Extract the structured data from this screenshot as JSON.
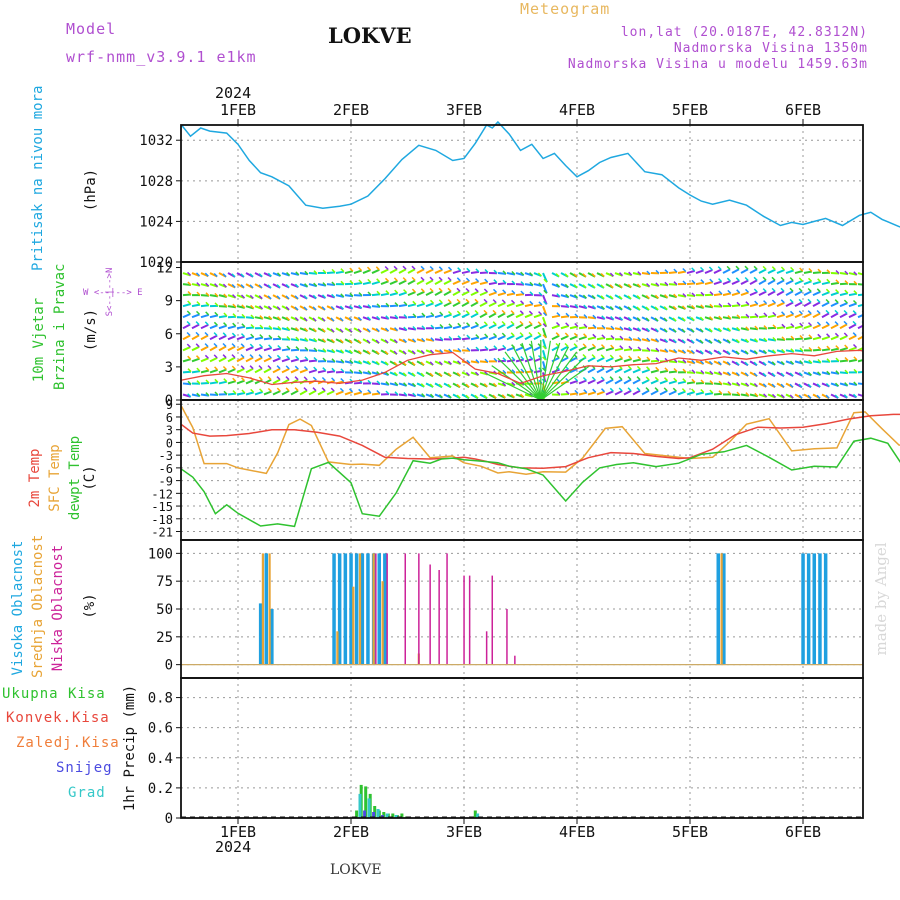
{
  "header": {
    "model_label": "Model",
    "model_name": "wrf-nmm_v3.9.1 e1km",
    "station": "LOKVE",
    "title": "Meteogram",
    "coords": "lon,lat (20.0187E, 42.8312N)",
    "elevation": "Nadmorska Visina 1350m",
    "model_elevation": "Nadmorska Visina u modelu 1459.63m",
    "footer_station": "LOKVE",
    "watermark": "made by Angel"
  },
  "colors": {
    "pressure": "#1fa8e0",
    "temp2m": "#e8473c",
    "sfc": "#e8a436",
    "dew": "#2fc22f",
    "high_cloud": "#1fa0e0",
    "mid_cloud": "#e8a436",
    "low_cloud": "#cc2299",
    "total_precip": "#2fc22f",
    "conv_precip": "#e8473c",
    "frozen_precip": "#f07e3a",
    "snow": "#4b4be0",
    "graupel": "#35c8c8",
    "label_purple": "#b04fd0",
    "label_orange": "#e8b860"
  },
  "time_axis": {
    "year": "2024",
    "days": [
      "1FEB",
      "2FEB",
      "3FEB",
      "4FEB",
      "5FEB",
      "6FEB"
    ]
  },
  "panels": {
    "pressure": {
      "label": "Pritisak na nivou mora",
      "unit": "(hPa)",
      "ticks": [
        "1020",
        "1024",
        "1028",
        "1032"
      ]
    },
    "wind": {
      "label1": "10m Vjetar",
      "label2": "Brzina i Pravac",
      "unit": "(m/s)",
      "ticks": [
        "0",
        "3",
        "6",
        "9",
        "12"
      ],
      "compass": "W <--|--> E",
      "compass_v": "S<--|-->N"
    },
    "temp": {
      "label1": "2m Temp",
      "label2": "SFC Temp",
      "label3": "dewpt Temp",
      "unit": "(C)",
      "ticks": [
        "-21",
        "-18",
        "-15",
        "-12",
        "-9",
        "-6",
        "-3",
        "0",
        "3",
        "6",
        "9"
      ]
    },
    "cloud": {
      "label1": "Visoka Oblacnost",
      "label2": "Srednja Oblacnost",
      "label3": "Niska Oblacnost",
      "unit": "(%)",
      "ticks": [
        "0",
        "25",
        "50",
        "75",
        "100"
      ]
    },
    "precip": {
      "labels": [
        "Ukupna Kisa",
        "Konvek.Kisa",
        "Zaledj.Kisa",
        "Snijeg",
        "Grad"
      ],
      "unit": "1hr Precip (mm)",
      "ticks": [
        "0",
        "0.2",
        "0.4",
        "0.6",
        "0.8"
      ]
    }
  },
  "chart_data": [
    {
      "type": "line",
      "title": "Pritisak na nivou mora",
      "ylabel": "(hPa)",
      "ylim": [
        1020,
        1033.5
      ],
      "x_unit": "days since 1FEB 00h",
      "series": [
        {
          "name": "Pritisak na nivou mora",
          "x": [
            -0.5,
            -0.42,
            -0.33,
            -0.25,
            -0.1,
            0.0,
            0.1,
            0.2,
            0.3,
            0.45,
            0.6,
            0.75,
            0.9,
            1.0,
            1.15,
            1.3,
            1.45,
            1.6,
            1.75,
            1.9,
            2.0,
            2.1,
            2.2,
            2.25,
            2.3,
            2.4,
            2.5,
            2.6,
            2.7,
            2.8,
            2.9,
            3.0,
            3.1,
            3.2,
            3.3,
            3.45,
            3.6,
            3.75,
            3.9,
            4.0,
            4.1,
            4.2,
            4.35,
            4.5,
            4.65,
            4.8,
            4.9,
            5.0,
            5.1,
            5.2,
            5.35,
            5.5,
            5.6,
            5.7,
            5.85,
            6.0,
            6.1,
            6.2,
            6.35,
            6.5
          ],
          "values": [
            1033.5,
            1032.4,
            1033.2,
            1032.9,
            1032.7,
            1031.6,
            1030.0,
            1028.8,
            1028.4,
            1027.5,
            1025.6,
            1025.3,
            1025.5,
            1025.7,
            1026.5,
            1028.2,
            1030.1,
            1031.5,
            1031.0,
            1030.0,
            1030.2,
            1031.7,
            1033.5,
            1033.2,
            1033.8,
            1032.6,
            1031.0,
            1031.6,
            1030.2,
            1030.7,
            1029.5,
            1028.4,
            1029.0,
            1029.8,
            1030.3,
            1030.7,
            1028.9,
            1028.6,
            1027.3,
            1026.6,
            1026.0,
            1025.7,
            1026.1,
            1025.6,
            1024.5,
            1023.6,
            1023.9,
            1023.7,
            1024.0,
            1024.3,
            1023.6,
            1024.6,
            1024.9,
            1024.2,
            1023.5,
            1022.7,
            1022.8,
            1022.3,
            1021.6,
            1020.7
          ]
        }
      ]
    },
    {
      "type": "line",
      "title": "10m Vjetar Brzina i Pravac",
      "ylabel": "(m/s)",
      "ylim": [
        0,
        12.5
      ],
      "series": [
        {
          "name": "Brzina",
          "x": [
            -0.5,
            -0.3,
            -0.1,
            0.1,
            0.3,
            0.5,
            0.7,
            0.9,
            1.1,
            1.3,
            1.5,
            1.7,
            1.9,
            2.1,
            2.3,
            2.5,
            2.7,
            2.9,
            3.1,
            3.3,
            3.5,
            3.7,
            3.9,
            4.1,
            4.3,
            4.5,
            4.7,
            4.9,
            5.1,
            5.3,
            5.5,
            5.7,
            5.9,
            6.1,
            6.3,
            6.5
          ],
          "values": [
            1.8,
            2.2,
            2.4,
            2.0,
            1.4,
            1.6,
            1.7,
            1.5,
            1.8,
            2.5,
            3.6,
            4.1,
            4.3,
            2.8,
            2.4,
            1.5,
            2.2,
            2.6,
            3.1,
            3.0,
            3.2,
            3.3,
            3.8,
            3.6,
            3.9,
            3.7,
            4.0,
            4.2,
            4.0,
            4.4,
            4.5,
            4.1,
            3.9,
            4.3,
            7.8,
            11.8
          ]
        }
      ]
    },
    {
      "type": "line",
      "title": "Temp",
      "ylabel": "(C)",
      "ylim": [
        -23,
        10
      ],
      "series": [
        {
          "name": "2m Temp",
          "x": [
            -0.5,
            -0.4,
            -0.25,
            -0.1,
            0.1,
            0.3,
            0.5,
            0.7,
            0.9,
            1.1,
            1.3,
            1.5,
            1.7,
            1.9,
            2.0,
            2.1,
            2.2,
            2.3,
            2.4,
            2.5,
            2.7,
            2.9,
            3.1,
            3.3,
            3.5,
            3.7,
            3.9,
            4.0,
            4.2,
            4.4,
            4.6,
            4.8,
            5.0,
            5.2,
            5.4,
            5.6,
            5.8,
            6.0,
            6.2,
            6.3,
            6.4,
            6.5
          ],
          "values": [
            4.2,
            2.2,
            1.5,
            1.6,
            2.1,
            3.0,
            3.0,
            2.4,
            1.5,
            -0.7,
            -3.5,
            -3.8,
            -3.9,
            -3.7,
            -3.5,
            -3.9,
            -4.5,
            -5.2,
            -5.6,
            -6.0,
            -6.1,
            -5.7,
            -3.6,
            -2.4,
            -2.6,
            -3.3,
            -3.8,
            -3.6,
            -1.6,
            1.8,
            3.6,
            3.4,
            3.6,
            4.4,
            5.5,
            6.3,
            6.6,
            6.6,
            6.3,
            4.5,
            6.5,
            6.6
          ]
        },
        {
          "name": "SFC Temp",
          "x": [
            -0.5,
            -0.4,
            -0.3,
            -0.1,
            0.0,
            0.25,
            0.35,
            0.45,
            0.55,
            0.65,
            0.8,
            1.0,
            1.1,
            1.25,
            1.4,
            1.55,
            1.7,
            1.9,
            2.0,
            2.15,
            2.3,
            2.4,
            2.55,
            2.7,
            2.9,
            3.05,
            3.25,
            3.4,
            3.6,
            3.8,
            4.0,
            4.2,
            4.35,
            4.5,
            4.7,
            4.9,
            5.1,
            5.3,
            5.45,
            5.55,
            5.7,
            5.85,
            6.0,
            6.2,
            6.35,
            6.45,
            6.5
          ],
          "values": [
            8.5,
            3.5,
            -5.0,
            -5.0,
            -6.0,
            -7.3,
            -2.5,
            4.2,
            5.5,
            4.0,
            -4.6,
            -5.2,
            -5.1,
            -5.4,
            -1.6,
            1.2,
            -3.6,
            -3.2,
            -4.8,
            -5.6,
            -7.2,
            -6.9,
            -7.5,
            -6.9,
            -7.0,
            -3.7,
            3.3,
            3.7,
            -2.6,
            -3.2,
            -3.8,
            -3.5,
            0.1,
            4.3,
            5.6,
            -2.0,
            -1.5,
            -1.3,
            7.0,
            7.2,
            3.2,
            -0.6,
            -1.0,
            -0.2,
            0.6,
            7.0,
            7.0
          ]
        },
        {
          "name": "dewpt Temp",
          "x": [
            -0.5,
            -0.4,
            -0.3,
            -0.2,
            -0.1,
            0.0,
            0.2,
            0.35,
            0.5,
            0.65,
            0.8,
            1.0,
            1.1,
            1.25,
            1.4,
            1.55,
            1.7,
            1.8,
            1.9,
            2.0,
            2.15,
            2.3,
            2.4,
            2.55,
            2.7,
            2.9,
            3.05,
            3.2,
            3.35,
            3.5,
            3.7,
            3.9,
            4.1,
            4.3,
            4.5,
            4.7,
            4.9,
            5.1,
            5.3,
            5.45,
            5.6,
            5.75,
            5.9,
            6.0,
            6.2,
            6.35,
            6.5
          ],
          "values": [
            -6.3,
            -8.2,
            -11.6,
            -16.8,
            -14.7,
            -16.7,
            -19.7,
            -19.2,
            -19.8,
            -6.2,
            -4.7,
            -9.5,
            -16.8,
            -17.4,
            -11.9,
            -4.3,
            -4.9,
            -3.9,
            -3.7,
            -4.1,
            -4.4,
            -4.8,
            -5.6,
            -6.2,
            -7.7,
            -13.8,
            -9.4,
            -6.0,
            -5.2,
            -4.8,
            -5.7,
            -4.9,
            -2.8,
            -2.2,
            -0.7,
            -3.5,
            -6.5,
            -5.6,
            -5.8,
            0.3,
            1.0,
            -0.2,
            -6.2,
            -7.8,
            -6.0,
            -1.7,
            1.6
          ]
        }
      ]
    },
    {
      "type": "bar",
      "title": "Oblacnost",
      "ylabel": "(%)",
      "ylim": [
        0,
        100
      ],
      "series": [
        {
          "name": "Visoka Oblacnost",
          "x": [
            0.2,
            0.25,
            0.3,
            0.85,
            0.9,
            0.95,
            1.0,
            1.05,
            1.1,
            1.15,
            1.2,
            1.25,
            1.3,
            4.25,
            4.3,
            5.0,
            5.05,
            5.1,
            5.15,
            5.2
          ],
          "values": [
            55,
            100,
            50,
            100,
            100,
            100,
            100,
            100,
            100,
            100,
            100,
            100,
            100,
            100,
            100,
            100,
            100,
            100,
            100,
            100
          ]
        },
        {
          "name": "Srednja Oblacnost",
          "x": [
            0.22,
            0.28,
            0.88,
            1.02,
            1.08,
            1.2,
            1.28,
            1.6,
            4.28
          ],
          "values": [
            100,
            100,
            30,
            70,
            100,
            100,
            75,
            10,
            100
          ]
        },
        {
          "name": "Niska Oblacnost",
          "x": [
            1.22,
            1.32,
            1.48,
            1.6,
            1.7,
            1.78,
            1.85,
            2.0,
            2.05,
            2.2,
            2.25,
            2.38,
            2.45
          ],
          "values": [
            100,
            100,
            100,
            100,
            90,
            85,
            100,
            80,
            80,
            30,
            80,
            50,
            8
          ]
        }
      ]
    },
    {
      "type": "bar",
      "title": "1hr Precip",
      "ylabel": "1hr Precip (mm)",
      "ylim": [
        0,
        0.93
      ],
      "series": [
        {
          "name": "Ukupna Kisa",
          "x": [
            1.05,
            1.09,
            1.13,
            1.17,
            1.21,
            1.25,
            1.29,
            1.33,
            1.37,
            1.41,
            1.45,
            1.49,
            2.1
          ],
          "values": [
            0.05,
            0.22,
            0.21,
            0.16,
            0.08,
            0.05,
            0.04,
            0.03,
            0.03,
            0.02,
            0.03,
            0.01,
            0.05
          ]
        },
        {
          "name": "Snijeg",
          "x": [
            1.12,
            1.2,
            1.28
          ],
          "values": [
            0.05,
            0.04,
            0.02
          ]
        },
        {
          "name": "Grad",
          "x": [
            1.08,
            1.16,
            1.24,
            1.32,
            1.4,
            2.12
          ],
          "values": [
            0.16,
            0.13,
            0.06,
            0.03,
            0.02,
            0.03
          ]
        }
      ]
    }
  ]
}
